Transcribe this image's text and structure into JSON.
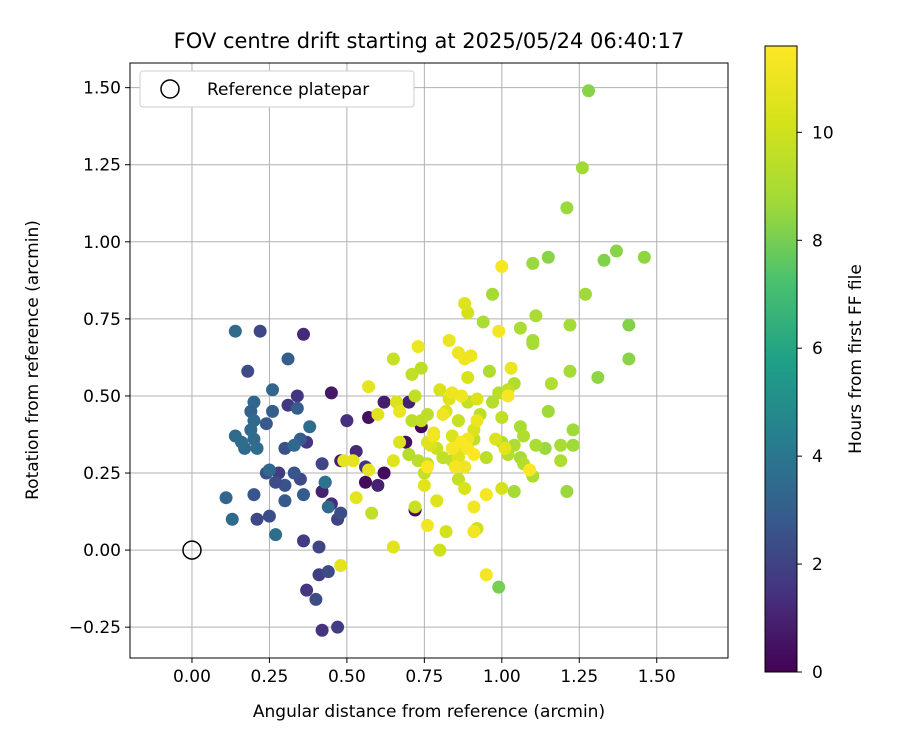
{
  "chart_data": {
    "type": "scatter",
    "title": "FOV centre drift starting at 2025/05/24 06:40:17",
    "xlabel": "Angular distance from reference (arcmin)",
    "ylabel": "Rotation from reference (arcmin)",
    "xlim": [
      -0.2,
      1.73
    ],
    "ylim": [
      -0.35,
      1.58
    ],
    "xticks": [
      "0.00",
      "0.25",
      "0.50",
      "0.75",
      "1.00",
      "1.25",
      "1.50"
    ],
    "yticks": [
      "−0.25",
      "0.00",
      "0.25",
      "0.50",
      "0.75",
      "1.00",
      "1.25",
      "1.50"
    ],
    "grid": true,
    "legend": {
      "position": "top-left",
      "label": "Reference platepar",
      "marker": "open-circle"
    },
    "reference_point": {
      "x": 0.0,
      "y": 0.0
    },
    "colorbar": {
      "label": "Hours from first FF file",
      "colormap": "viridis",
      "range": [
        0,
        11.6
      ],
      "ticks": [
        "0",
        "2",
        "4",
        "6",
        "8",
        "10"
      ]
    },
    "points": [
      [
        0.56,
        0.22,
        0.3
      ],
      [
        0.62,
        0.25,
        0.3
      ],
      [
        0.72,
        0.13,
        0.2
      ],
      [
        0.74,
        0.4,
        0.2
      ],
      [
        0.69,
        0.35,
        0.4
      ],
      [
        0.57,
        0.43,
        0.4
      ],
      [
        0.48,
        0.29,
        0.8
      ],
      [
        0.45,
        0.51,
        0.7
      ],
      [
        0.6,
        0.21,
        1.0
      ],
      [
        0.62,
        0.48,
        0.9
      ],
      [
        0.7,
        0.48,
        1.0
      ],
      [
        0.45,
        0.15,
        1.3
      ],
      [
        0.53,
        0.32,
        1.2
      ],
      [
        0.56,
        0.27,
        1.5
      ],
      [
        0.36,
        0.7,
        1.2
      ],
      [
        0.42,
        0.19,
        1.0
      ],
      [
        0.5,
        0.42,
        1.4
      ],
      [
        0.37,
        -0.13,
        1.6
      ],
      [
        0.42,
        -0.26,
        1.5
      ],
      [
        0.47,
        -0.25,
        1.8
      ],
      [
        0.41,
        -0.08,
        1.9
      ],
      [
        0.43,
        0.22,
        2.0
      ],
      [
        0.42,
        0.28,
        2.1
      ],
      [
        0.47,
        0.1,
        2.0
      ],
      [
        0.36,
        0.03,
        1.8
      ],
      [
        0.28,
        0.25,
        1.8
      ],
      [
        0.22,
        0.71,
        2.2
      ],
      [
        0.18,
        0.58,
        2.3
      ],
      [
        0.34,
        0.5,
        1.6
      ],
      [
        0.31,
        0.47,
        1.7
      ],
      [
        0.37,
        0.35,
        1.6
      ],
      [
        0.41,
        0.01,
        2.1
      ],
      [
        0.4,
        -0.16,
        2.3
      ],
      [
        0.44,
        -0.07,
        2.3
      ],
      [
        0.48,
        0.12,
        2.4
      ],
      [
        0.35,
        0.23,
        2.3
      ],
      [
        0.3,
        0.21,
        2.6
      ],
      [
        0.3,
        0.33,
        2.6
      ],
      [
        0.27,
        0.22,
        2.3
      ],
      [
        0.33,
        0.25,
        2.7
      ],
      [
        0.36,
        0.18,
        2.9
      ],
      [
        0.3,
        0.16,
        2.8
      ],
      [
        0.25,
        0.11,
        2.4
      ],
      [
        0.21,
        0.1,
        2.2
      ],
      [
        0.2,
        0.18,
        2.7
      ],
      [
        0.24,
        0.25,
        2.5
      ],
      [
        0.24,
        0.41,
        2.8
      ],
      [
        0.26,
        0.45,
        3.0
      ],
      [
        0.31,
        0.62,
        3.0
      ],
      [
        0.34,
        0.46,
        3.0
      ],
      [
        0.35,
        0.36,
        3.0
      ],
      [
        0.26,
        0.52,
        3.3
      ],
      [
        0.2,
        0.48,
        3.3
      ],
      [
        0.19,
        0.45,
        3.2
      ],
      [
        0.2,
        0.42,
        3.4
      ],
      [
        0.19,
        0.39,
        3.5
      ],
      [
        0.2,
        0.36,
        3.5
      ],
      [
        0.21,
        0.33,
        3.6
      ],
      [
        0.17,
        0.33,
        3.4
      ],
      [
        0.16,
        0.35,
        3.6
      ],
      [
        0.14,
        0.37,
        3.5
      ],
      [
        0.14,
        0.71,
        3.5
      ],
      [
        0.13,
        0.1,
        3.5
      ],
      [
        0.11,
        0.17,
        3.3
      ],
      [
        0.27,
        0.05,
        3.6
      ],
      [
        0.44,
        0.14,
        3.5
      ],
      [
        0.38,
        0.4,
        3.6
      ],
      [
        0.33,
        0.34,
        3.4
      ],
      [
        0.25,
        0.26,
        3.4
      ],
      [
        0.43,
        0.22,
        3.8
      ],
      [
        0.99,
        -0.12,
        8.0
      ],
      [
        1.28,
        1.49,
        8.3
      ],
      [
        1.26,
        1.24,
        8.7
      ],
      [
        1.21,
        1.11,
        8.6
      ],
      [
        1.37,
        0.97,
        8.3
      ],
      [
        1.33,
        0.94,
        8.2
      ],
      [
        1.46,
        0.95,
        8.4
      ],
      [
        1.15,
        0.95,
        8.3
      ],
      [
        1.1,
        0.93,
        8.6
      ],
      [
        1.27,
        0.83,
        8.7
      ],
      [
        0.97,
        0.83,
        8.8
      ],
      [
        1.22,
        0.73,
        8.8
      ],
      [
        1.41,
        0.73,
        8.2
      ],
      [
        1.41,
        0.62,
        8.3
      ],
      [
        1.31,
        0.56,
        8.4
      ],
      [
        1.11,
        0.76,
        9.0
      ],
      [
        1.06,
        0.72,
        9.0
      ],
      [
        0.94,
        0.74,
        9.0
      ],
      [
        1.22,
        0.58,
        8.8
      ],
      [
        1.16,
        0.54,
        9.2
      ],
      [
        1.04,
        0.54,
        9.2
      ],
      [
        1.1,
        0.68,
        8.8
      ],
      [
        1.1,
        0.67,
        8.9
      ],
      [
        0.96,
        0.58,
        9.1
      ],
      [
        1.15,
        0.45,
        8.7
      ],
      [
        1.23,
        0.39,
        8.7
      ],
      [
        1.23,
        0.34,
        8.7
      ],
      [
        1.19,
        0.34,
        8.9
      ],
      [
        1.14,
        0.33,
        8.6
      ],
      [
        1.11,
        0.34,
        9.0
      ],
      [
        1.06,
        0.4,
        9.0
      ],
      [
        1.07,
        0.37,
        9.2
      ],
      [
        1.04,
        0.34,
        9.1
      ],
      [
        1.02,
        0.31,
        9.3
      ],
      [
        1.0,
        0.35,
        9.2
      ],
      [
        1.06,
        0.3,
        8.9
      ],
      [
        1.07,
        0.28,
        9.2
      ],
      [
        1.1,
        0.24,
        9.1
      ],
      [
        1.04,
        0.19,
        8.8
      ],
      [
        1.21,
        0.19,
        8.6
      ],
      [
        1.19,
        0.29,
        9.1
      ],
      [
        0.95,
        0.3,
        9.5
      ],
      [
        0.91,
        0.36,
        9.6
      ],
      [
        0.93,
        0.44,
        9.5
      ],
      [
        0.97,
        0.48,
        9.3
      ],
      [
        0.99,
        0.51,
        9.4
      ],
      [
        1.02,
        0.52,
        9.6
      ],
      [
        1.0,
        0.43,
        9.6
      ],
      [
        0.89,
        0.48,
        9.7
      ],
      [
        0.86,
        0.42,
        9.8
      ],
      [
        0.84,
        0.29,
        9.6
      ],
      [
        0.86,
        0.23,
        9.7
      ],
      [
        0.81,
        0.3,
        9.6
      ],
      [
        0.79,
        0.33,
        9.8
      ],
      [
        0.76,
        0.28,
        9.6
      ],
      [
        0.75,
        0.25,
        9.7
      ],
      [
        0.73,
        0.29,
        9.5
      ],
      [
        0.7,
        0.31,
        9.3
      ],
      [
        0.71,
        0.42,
        9.5
      ],
      [
        0.74,
        0.42,
        9.6
      ],
      [
        0.76,
        0.44,
        9.5
      ],
      [
        0.74,
        0.59,
        9.5
      ],
      [
        0.71,
        0.57,
        9.6
      ],
      [
        0.65,
        0.62,
        9.8
      ],
      [
        0.72,
        0.5,
        9.6
      ],
      [
        0.58,
        0.12,
        9.6
      ],
      [
        0.72,
        0.14,
        9.8
      ],
      [
        0.8,
        0.0,
        10.0
      ],
      [
        0.82,
        0.06,
        10.1
      ],
      [
        0.92,
        0.07,
        10.0
      ],
      [
        1.0,
        0.2,
        10.2
      ],
      [
        0.88,
        0.2,
        10.3
      ],
      [
        0.89,
        0.77,
        10.2
      ],
      [
        0.88,
        0.8,
        10.5
      ],
      [
        0.89,
        0.56,
        10.3
      ],
      [
        0.92,
        0.49,
        10.4
      ],
      [
        0.98,
        0.36,
        10.4
      ],
      [
        0.91,
        0.39,
        10.4
      ],
      [
        0.88,
        0.33,
        10.5
      ],
      [
        0.86,
        0.3,
        10.5
      ],
      [
        0.82,
        0.45,
        10.3
      ],
      [
        0.8,
        0.52,
        10.3
      ],
      [
        0.84,
        0.37,
        10.4
      ],
      [
        0.83,
        0.49,
        10.5
      ],
      [
        0.77,
        0.34,
        10.4
      ],
      [
        0.79,
        0.16,
        10.5
      ],
      [
        0.75,
        0.21,
        10.6
      ],
      [
        0.76,
        0.35,
        10.5
      ],
      [
        0.65,
        0.29,
        10.6
      ],
      [
        0.66,
        0.48,
        10.4
      ],
      [
        0.67,
        0.35,
        10.4
      ],
      [
        0.6,
        0.44,
        10.6
      ],
      [
        0.65,
        0.01,
        10.6
      ],
      [
        0.53,
        0.17,
        10.7
      ],
      [
        0.48,
        -0.05,
        10.7
      ],
      [
        0.57,
        0.26,
        10.8
      ],
      [
        0.52,
        0.29,
        10.8
      ],
      [
        0.49,
        0.29,
        10.8
      ],
      [
        0.57,
        0.53,
        10.8
      ],
      [
        0.67,
        0.45,
        10.9
      ],
      [
        0.73,
        0.66,
        11.0
      ],
      [
        0.83,
        0.68,
        10.9
      ],
      [
        0.86,
        0.64,
        11.0
      ],
      [
        0.88,
        0.62,
        11.1
      ],
      [
        0.9,
        0.63,
        11.0
      ],
      [
        0.87,
        0.5,
        11.1
      ],
      [
        0.84,
        0.51,
        11.0
      ],
      [
        0.81,
        0.44,
        11.1
      ],
      [
        0.78,
        0.38,
        11.0
      ],
      [
        0.76,
        0.08,
        11.2
      ],
      [
        0.88,
        0.27,
        11.1
      ],
      [
        0.89,
        0.36,
        11.2
      ],
      [
        0.91,
        0.14,
        11.2
      ],
      [
        0.91,
        0.06,
        11.2
      ],
      [
        0.95,
        0.18,
        11.3
      ],
      [
        0.95,
        -0.08,
        11.3
      ],
      [
        0.99,
        0.71,
        11.3
      ],
      [
        1.0,
        0.92,
        11.4
      ],
      [
        1.02,
        0.5,
        11.4
      ],
      [
        1.09,
        0.26,
        11.5
      ],
      [
        0.84,
        0.33,
        11.4
      ],
      [
        0.89,
        0.33,
        11.5
      ],
      [
        0.91,
        0.31,
        11.6
      ],
      [
        0.87,
        0.35,
        11.5
      ],
      [
        0.85,
        0.27,
        11.3
      ],
      [
        0.78,
        0.37,
        11.2
      ],
      [
        0.76,
        0.27,
        11.6
      ],
      [
        0.92,
        0.42,
        11.0
      ],
      [
        1.01,
        0.33,
        10.8
      ],
      [
        1.03,
        0.59,
        10.9
      ]
    ]
  }
}
